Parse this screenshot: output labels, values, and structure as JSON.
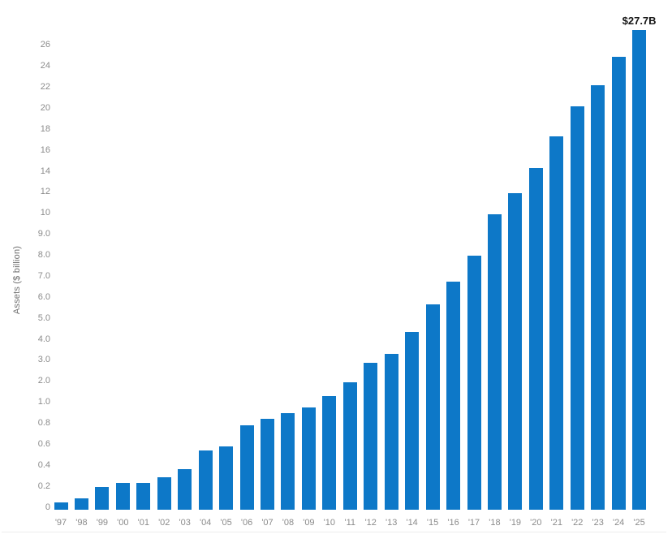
{
  "chart_data": {
    "type": "bar",
    "title": "",
    "xlabel": "",
    "ylabel": "Assets ($ billion)",
    "categories": [
      "'97",
      "'98",
      "'99",
      "'00",
      "'01",
      "'02",
      "'03",
      "'04",
      "'05",
      "'06",
      "'07",
      "'08",
      "'09",
      "'10",
      "'11",
      "'12",
      "'13",
      "'14",
      "'15",
      "'16",
      "'17",
      "'18",
      "'19",
      "'20",
      "'21",
      "'22",
      "'23",
      "'24",
      "'25"
    ],
    "values": [
      0.07,
      0.11,
      0.22,
      0.26,
      0.26,
      0.31,
      0.39,
      0.57,
      0.61,
      0.81,
      0.87,
      0.92,
      0.98,
      1.45,
      2.1,
      3.0,
      3.45,
      4.5,
      5.8,
      6.9,
      8.1,
      10.2,
      12.2,
      14.6,
      17.6,
      20.5,
      22.5,
      25.2,
      27.7
    ],
    "annotation": {
      "text": "$27.7B",
      "category": "'25"
    },
    "y_tick_values": [
      0,
      0.2,
      0.4,
      0.6,
      0.8,
      1.0,
      2.0,
      3.0,
      4.0,
      5.0,
      6.0,
      7.0,
      8.0,
      9.0,
      10,
      12,
      14,
      16,
      18,
      20,
      22,
      24,
      26
    ],
    "y_tick_labels": [
      "0",
      "0.2",
      "0.4",
      "0.6",
      "0.8",
      "1.0",
      "2.0",
      "3.0",
      "4.0",
      "5.0",
      "6.0",
      "7.0",
      "8.0",
      "9.0",
      "10",
      "12",
      "14",
      "16",
      "18",
      "20",
      "22",
      "24",
      "26"
    ],
    "axis_scale": "piecewise-linear, equal spacing between consecutive ticks",
    "ylim": [
      0,
      27.7
    ],
    "grid": false,
    "legend": false,
    "colors": {
      "bar": "#0d78c8",
      "tick_label": "#8b8b8b",
      "axis_title": "#6f6f6f",
      "annotation": "#161616",
      "divider": "#ececec",
      "background": "#ffffff"
    }
  }
}
